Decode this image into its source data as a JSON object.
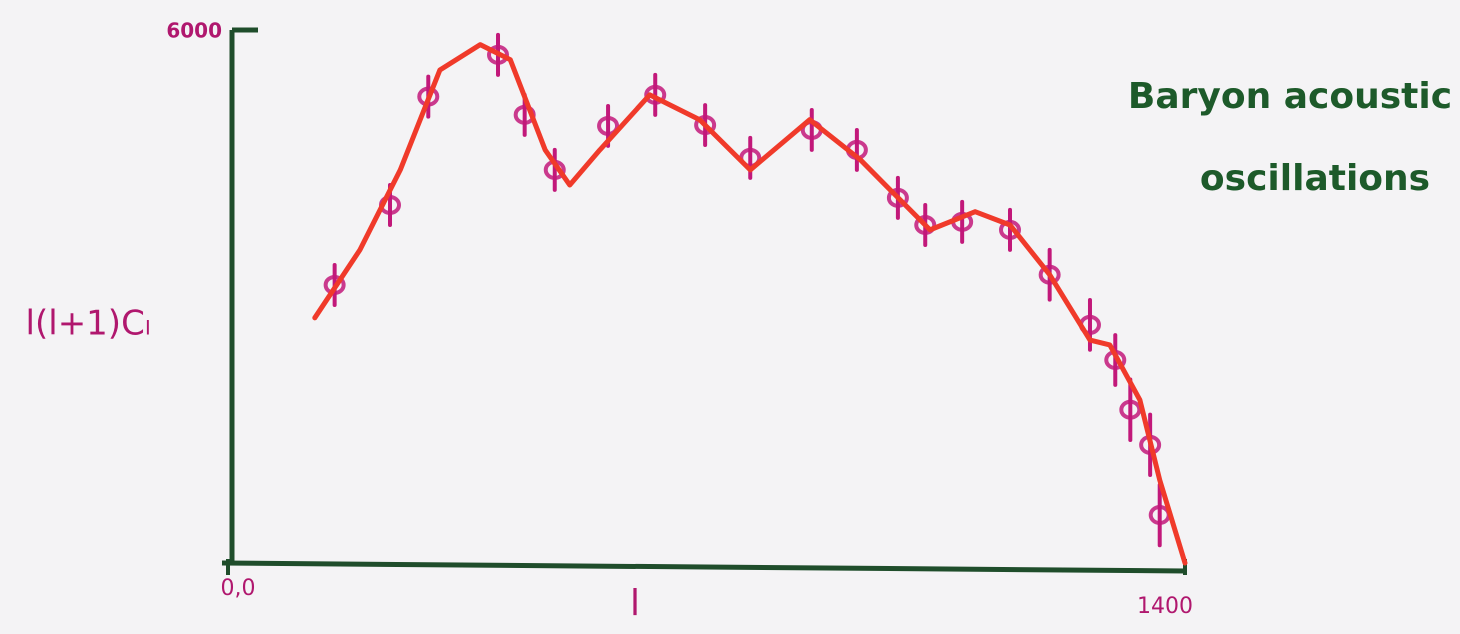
{
  "chart_data": {
    "type": "scatter",
    "x_label": "l",
    "y_label": "l(l+1)Cₗ",
    "annotation": [
      "Baryon acoustic",
      "oscillations"
    ],
    "xlim": [
      0,
      1400
    ],
    "ylim": [
      0,
      6000
    ],
    "xticks": [
      {
        "value": 0,
        "label": "0,0"
      },
      1400
    ],
    "yticks": [
      6000
    ],
    "axis_color": "#1f4d2b",
    "tick_color": "#b0176e",
    "annotation_color": "#1d5a2a",
    "series": [
      {
        "type": "scatter",
        "color": "#c2187a",
        "x": [
          156,
          237,
          293,
          395,
          434,
          478,
          556,
          625,
          698,
          764,
          854,
          920,
          980,
          1020,
          1074,
          1144,
          1202,
          1261,
          1298,
          1320,
          1349,
          1363
        ],
        "values": [
          3130,
          4030,
          5250,
          5720,
          5045,
          4425,
          4920,
          5270,
          4930,
          4560,
          4875,
          4650,
          4110,
          3805,
          3840,
          3750,
          3245,
          2680,
          2285,
          1725,
          1330,
          540
        ],
        "errors": [
          225,
          225,
          225,
          225,
          225,
          225,
          225,
          225,
          225,
          225,
          225,
          225,
          225,
          225,
          225,
          225,
          280,
          280,
          280,
          340,
          340,
          340
        ]
      },
      {
        "type": "line",
        "color": "#f03a2a",
        "x": [
          127,
          193,
          252,
          310,
          369,
          413,
          464,
          500,
          544,
          617,
          690,
          764,
          851,
          925,
          983,
          1027,
          1093,
          1144,
          1202,
          1261,
          1290,
          1334,
          1363,
          1400
        ],
        "values": [
          2760,
          3525,
          4425,
          5550,
          5835,
          5665,
          4650,
          4255,
          4650,
          5270,
          4990,
          4425,
          4990,
          4540,
          4090,
          3750,
          3955,
          3805,
          3245,
          2510,
          2455,
          1835,
          935,
          0
        ]
      }
    ]
  }
}
